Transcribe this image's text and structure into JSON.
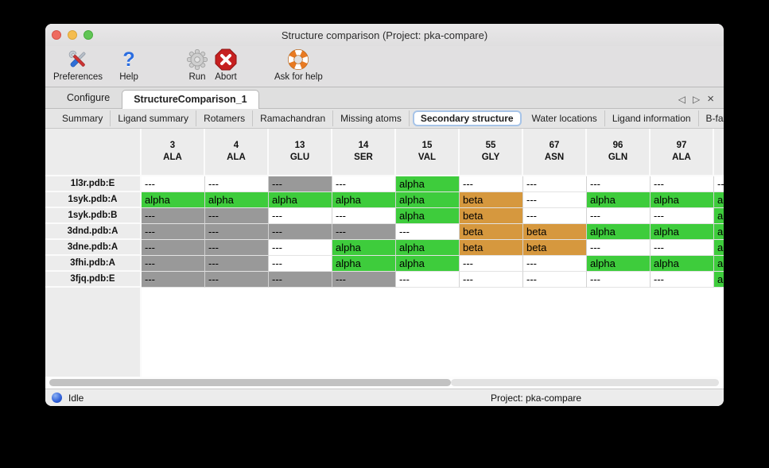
{
  "window": {
    "title": "Structure comparison (Project: pka-compare)"
  },
  "toolbar": {
    "items": [
      {
        "label": "Preferences",
        "icon": "tools-icon"
      },
      {
        "label": "Help",
        "icon": "question-icon"
      },
      {
        "label": "Run",
        "icon": "gear-icon"
      },
      {
        "label": "Abort",
        "icon": "stop-icon"
      },
      {
        "label": "Ask for help",
        "icon": "lifebuoy-icon"
      }
    ]
  },
  "tabs": {
    "items": [
      {
        "label": "Configure",
        "selected": false
      },
      {
        "label": "StructureComparison_1",
        "selected": true
      }
    ],
    "nav": {
      "back": "◁",
      "forward": "▷",
      "close": "×"
    }
  },
  "subtabs": {
    "items": [
      "Summary",
      "Ligand summary",
      "Rotamers",
      "Ramachandran",
      "Missing atoms",
      "Secondary structure",
      "Water locations",
      "Ligand information",
      "B-factors"
    ],
    "selected": "Secondary structure",
    "nav": {
      "back": "◁",
      "forward": "▷"
    }
  },
  "table": {
    "columns": [
      {
        "num": "3",
        "res": "ALA"
      },
      {
        "num": "4",
        "res": "ALA"
      },
      {
        "num": "13",
        "res": "GLU"
      },
      {
        "num": "14",
        "res": "SER"
      },
      {
        "num": "15",
        "res": "VAL"
      },
      {
        "num": "55",
        "res": "GLY"
      },
      {
        "num": "67",
        "res": "ASN"
      },
      {
        "num": "96",
        "res": "GLN"
      },
      {
        "num": "97",
        "res": "ALA"
      },
      {
        "num": "",
        "res": ""
      }
    ],
    "rows": [
      {
        "label": "1l3r.pdb:E",
        "cells": [
          {
            "text": "---",
            "bg": "white"
          },
          {
            "text": "---",
            "bg": "white"
          },
          {
            "text": "---",
            "bg": "gray"
          },
          {
            "text": "---",
            "bg": "white"
          },
          {
            "text": "alpha",
            "bg": "green"
          },
          {
            "text": "---",
            "bg": "white"
          },
          {
            "text": "---",
            "bg": "white"
          },
          {
            "text": "---",
            "bg": "white"
          },
          {
            "text": "---",
            "bg": "white"
          },
          {
            "text": "---",
            "bg": "white"
          }
        ]
      },
      {
        "label": "1syk.pdb:A",
        "cells": [
          {
            "text": "alpha",
            "bg": "green"
          },
          {
            "text": "alpha",
            "bg": "green"
          },
          {
            "text": "alpha",
            "bg": "green"
          },
          {
            "text": "alpha",
            "bg": "green"
          },
          {
            "text": "alpha",
            "bg": "green"
          },
          {
            "text": "beta",
            "bg": "orange"
          },
          {
            "text": "---",
            "bg": "white"
          },
          {
            "text": "alpha",
            "bg": "green"
          },
          {
            "text": "alpha",
            "bg": "green"
          },
          {
            "text": "alpha",
            "bg": "green"
          }
        ]
      },
      {
        "label": "1syk.pdb:B",
        "cells": [
          {
            "text": "---",
            "bg": "gray"
          },
          {
            "text": "---",
            "bg": "gray"
          },
          {
            "text": "---",
            "bg": "white"
          },
          {
            "text": "---",
            "bg": "white"
          },
          {
            "text": "alpha",
            "bg": "green"
          },
          {
            "text": "beta",
            "bg": "orange"
          },
          {
            "text": "---",
            "bg": "white"
          },
          {
            "text": "---",
            "bg": "white"
          },
          {
            "text": "---",
            "bg": "white"
          },
          {
            "text": "alpha",
            "bg": "green"
          }
        ]
      },
      {
        "label": "3dnd.pdb:A",
        "cells": [
          {
            "text": "---",
            "bg": "gray"
          },
          {
            "text": "---",
            "bg": "gray"
          },
          {
            "text": "---",
            "bg": "gray"
          },
          {
            "text": "---",
            "bg": "gray"
          },
          {
            "text": "---",
            "bg": "white"
          },
          {
            "text": "beta",
            "bg": "orange"
          },
          {
            "text": "beta",
            "bg": "orange"
          },
          {
            "text": "alpha",
            "bg": "green"
          },
          {
            "text": "alpha",
            "bg": "green"
          },
          {
            "text": "alpha",
            "bg": "green"
          }
        ]
      },
      {
        "label": "3dne.pdb:A",
        "cells": [
          {
            "text": "---",
            "bg": "gray"
          },
          {
            "text": "---",
            "bg": "gray"
          },
          {
            "text": "---",
            "bg": "white"
          },
          {
            "text": "alpha",
            "bg": "green"
          },
          {
            "text": "alpha",
            "bg": "green"
          },
          {
            "text": "beta",
            "bg": "orange"
          },
          {
            "text": "beta",
            "bg": "orange"
          },
          {
            "text": "---",
            "bg": "white"
          },
          {
            "text": "---",
            "bg": "white"
          },
          {
            "text": "alpha",
            "bg": "green"
          }
        ]
      },
      {
        "label": "3fhi.pdb:A",
        "cells": [
          {
            "text": "---",
            "bg": "gray"
          },
          {
            "text": "---",
            "bg": "gray"
          },
          {
            "text": "---",
            "bg": "white"
          },
          {
            "text": "alpha",
            "bg": "green"
          },
          {
            "text": "alpha",
            "bg": "green"
          },
          {
            "text": "---",
            "bg": "white"
          },
          {
            "text": "---",
            "bg": "white"
          },
          {
            "text": "alpha",
            "bg": "green"
          },
          {
            "text": "alpha",
            "bg": "green"
          },
          {
            "text": "alpha",
            "bg": "green"
          }
        ]
      },
      {
        "label": "3fjq.pdb:E",
        "cells": [
          {
            "text": "---",
            "bg": "gray"
          },
          {
            "text": "---",
            "bg": "gray"
          },
          {
            "text": "---",
            "bg": "gray"
          },
          {
            "text": "---",
            "bg": "gray"
          },
          {
            "text": "---",
            "bg": "white"
          },
          {
            "text": "---",
            "bg": "white"
          },
          {
            "text": "---",
            "bg": "white"
          },
          {
            "text": "---",
            "bg": "white"
          },
          {
            "text": "---",
            "bg": "white"
          },
          {
            "text": "alpha",
            "bg": "green"
          }
        ]
      }
    ]
  },
  "statusbar": {
    "status": "Idle",
    "project": "Project: pka-compare"
  },
  "colors": {
    "green": "#3ecc3c",
    "orange": "#d6983e",
    "gray": "#999999",
    "white": "#ffffff",
    "traffic_red": "#ee6a5f",
    "traffic_yellow": "#f5bd4f",
    "traffic_green": "#61c555"
  }
}
